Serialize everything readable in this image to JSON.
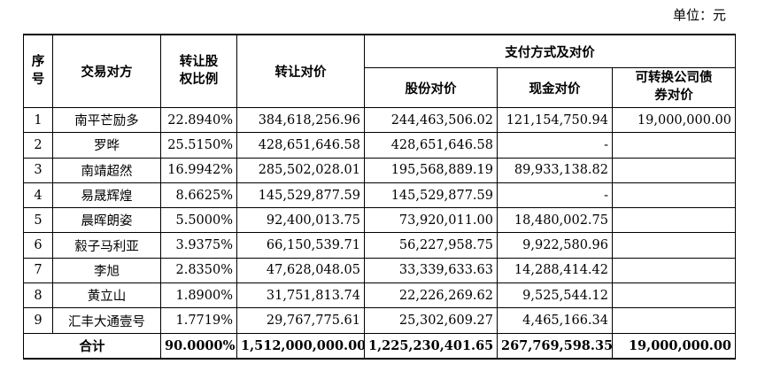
{
  "unit_label": "单位：元",
  "headers": {
    "seq": "序号",
    "party": "交易对方",
    "ratio": "转让股权比例",
    "consideration": "转让对价",
    "payment_group": "支付方式及对价",
    "share": "股份对价",
    "cash": "现金对价",
    "bond": "可转换公司债券对价"
  },
  "rows": [
    {
      "seq": "1",
      "party": "南平芒励多",
      "ratio": "22.8940%",
      "consideration": "384,618,256.96",
      "share": "244,463,506.02",
      "cash": "121,154,750.94",
      "bond": "19,000,000.00"
    },
    {
      "seq": "2",
      "party": "罗晔",
      "ratio": "25.5150%",
      "consideration": "428,651,646.58",
      "share": "428,651,646.58",
      "cash": "-",
      "bond": ""
    },
    {
      "seq": "3",
      "party": "南靖超然",
      "ratio": "16.9942%",
      "consideration": "285,502,028.01",
      "share": "195,568,889.19",
      "cash": "89,933,138.82",
      "bond": ""
    },
    {
      "seq": "4",
      "party": "易晟辉煌",
      "ratio": "8.6625%",
      "consideration": "145,529,877.59",
      "share": "145,529,877.59",
      "cash": "-",
      "bond": ""
    },
    {
      "seq": "5",
      "party": "晨晖朗姿",
      "ratio": "5.5000%",
      "consideration": "92,400,013.75",
      "share": "73,920,011.00",
      "cash": "18,480,002.75",
      "bond": ""
    },
    {
      "seq": "6",
      "party": "縠子马利亚",
      "ratio": "3.9375%",
      "consideration": "66,150,539.71",
      "share": "56,227,958.75",
      "cash": "9,922,580.96",
      "bond": ""
    },
    {
      "seq": "7",
      "party": "李旭",
      "ratio": "2.8350%",
      "consideration": "47,628,048.05",
      "share": "33,339,633.63",
      "cash": "14,288,414.42",
      "bond": ""
    },
    {
      "seq": "8",
      "party": "黄立山",
      "ratio": "1.8900%",
      "consideration": "31,751,813.74",
      "share": "22,226,269.62",
      "cash": "9,525,544.12",
      "bond": ""
    },
    {
      "seq": "9",
      "party": "汇丰大通壹号",
      "ratio": "1.7719%",
      "consideration": "29,767,775.61",
      "share": "25,302,609.27",
      "cash": "4,465,166.34",
      "bond": ""
    }
  ],
  "total": {
    "label": "合计",
    "ratio": "90.0000%",
    "consideration": "1,512,000,000.00",
    "share": "1,225,230,401.65",
    "cash": "267,769,598.35",
    "bond": "19,000,000.00"
  }
}
